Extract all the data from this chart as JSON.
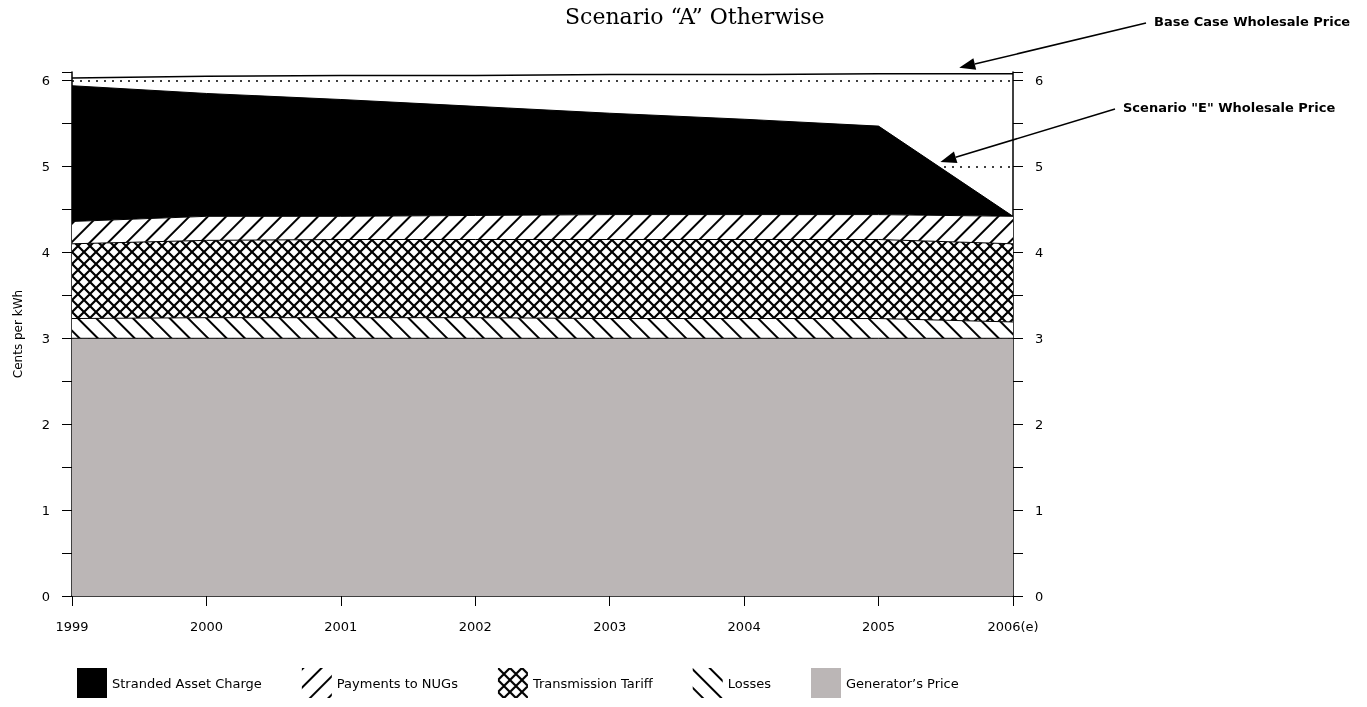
{
  "chart_data": {
    "type": "area",
    "title": "Scenario “A” Otherwise",
    "ylabel": "Cents per kWh",
    "categories": [
      "1999",
      "2000",
      "2001",
      "2002",
      "2003",
      "2004",
      "2005",
      "2006(e)"
    ],
    "stacked": true,
    "series": [
      {
        "name": "Generator’s Price",
        "color": "#bbb6b6",
        "values": [
          3.0,
          3.0,
          3.0,
          3.0,
          3.0,
          3.0,
          3.0,
          3.0
        ]
      },
      {
        "name": "Losses",
        "color": "#000000",
        "values": [
          0.23,
          0.24,
          0.24,
          0.24,
          0.23,
          0.23,
          0.23,
          0.19
        ]
      },
      {
        "name": "Transmission Tariff",
        "color": "#000000",
        "values": [
          0.87,
          0.9,
          0.91,
          0.91,
          0.92,
          0.92,
          0.92,
          0.91
        ]
      },
      {
        "name": "Payments to NUGs",
        "color": "#000000",
        "values": [
          0.26,
          0.28,
          0.27,
          0.28,
          0.29,
          0.29,
          0.29,
          0.32
        ]
      },
      {
        "name": "Stranded Asset Charge",
        "color": "#000000",
        "values": [
          1.58,
          1.43,
          1.36,
          1.27,
          1.18,
          1.11,
          1.03,
          0.0
        ]
      },
      {
        "type": "line",
        "color": "#000000",
        "values": [
          6.03,
          6.05,
          6.06,
          6.06,
          6.07,
          6.07,
          6.08,
          6.08
        ]
      }
    ],
    "annotations": [
      "Base Case Wholesale Price",
      "Scenario \"E\" Wholesale Price"
    ],
    "ylim": [
      0,
      6.1
    ],
    "yticks": [
      0,
      {
        "value": 0.5,
        "label": null
      },
      1,
      {
        "value": 1.5,
        "label": null
      },
      2,
      {
        "value": 2.5,
        "label": null
      },
      3,
      {
        "value": 3.5,
        "label": null
      },
      4,
      {
        "value": 4.5,
        "label": null
      },
      5,
      {
        "value": 5.5,
        "label": null
      },
      6
    ],
    "y2lim": [
      0,
      6.1
    ],
    "y2ticks": [
      0,
      {
        "value": 0.5,
        "label": null
      },
      1,
      {
        "value": 1.5,
        "label": null
      },
      2,
      {
        "value": 2.5,
        "label": null
      },
      3,
      {
        "value": 3.5,
        "label": null
      },
      4,
      {
        "value": 4.5,
        "label": null
      },
      5,
      {
        "value": 5.5,
        "label": null
      },
      6
    ],
    "grid": "y",
    "legend": "bottom",
    "marker": "none"
  }
}
